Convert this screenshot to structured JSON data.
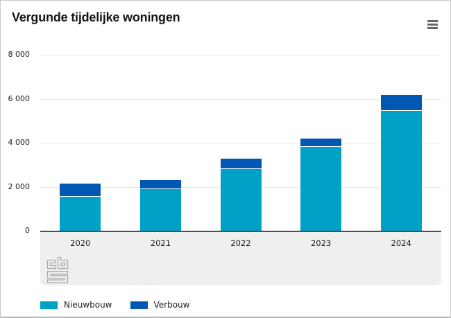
{
  "header": {
    "title": "Vergunde tijdelijke woningen",
    "menu_icon": "hamburger-menu-icon"
  },
  "chart_data": {
    "type": "bar",
    "stacked": true,
    "title": "Vergunde tijdelijke woningen",
    "categories": [
      "2020",
      "2021",
      "2022",
      "2023",
      "2024"
    ],
    "series": [
      {
        "name": "Nieuwbouw",
        "color": "#00a1c6",
        "values": [
          1550,
          1880,
          2790,
          3800,
          5450
        ]
      },
      {
        "name": "Verbouw",
        "color": "#0058b4",
        "values": [
          600,
          430,
          480,
          400,
          720
        ]
      }
    ],
    "totals": [
      2150,
      2310,
      3270,
      4200,
      6170
    ],
    "ylim": [
      0,
      8000
    ],
    "ytick_interval": 2000,
    "ytick_labels_bottom_to_top": [
      "0",
      "2 000",
      "4 000",
      "6 000",
      "8 000"
    ],
    "grid": true,
    "legend_position": "bottom-left",
    "xlabel": "",
    "ylabel": ""
  },
  "branding": {
    "logo": "cbs-logo"
  },
  "colors": {
    "nieuwbouw": "#00a1c6",
    "verbouw": "#0058b4",
    "gridline": "#e7e7e7",
    "axis_line": "#4f4f4f",
    "band_background": "#efefef",
    "text": "#1a1a1a",
    "logo_gray": "#a9a9a9",
    "menu_icon_gray": "#666666",
    "border": "#c6c6c6"
  }
}
